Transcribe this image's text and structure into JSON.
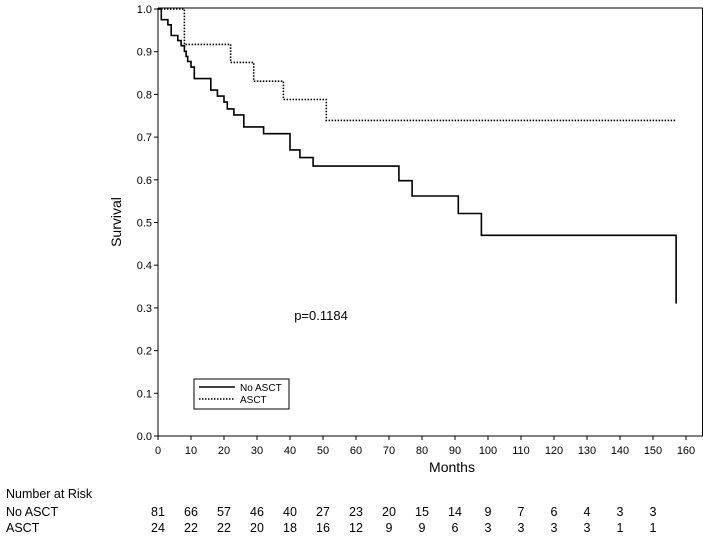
{
  "chart_data": {
    "type": "line",
    "subtype": "kaplan-meier-step",
    "xlabel": "Months",
    "ylabel": "Survival",
    "xlim": [
      0,
      160
    ],
    "ylim": [
      0.0,
      1.0
    ],
    "xticks": [
      "0",
      "10",
      "20",
      "30",
      "40",
      "50",
      "60",
      "70",
      "80",
      "90",
      "100",
      "110",
      "120",
      "130",
      "140",
      "150",
      "160"
    ],
    "yticks": [
      "0.0",
      "0.1",
      "0.2",
      "0.3",
      "0.4",
      "0.5",
      "0.6",
      "0.7",
      "0.8",
      "0.9",
      "1.0"
    ],
    "grid": false,
    "legend_position": "bottom-left",
    "annotation": "p=0.1184",
    "series": [
      {
        "name": "No ASCT",
        "style": "solid",
        "color": "#000000",
        "x": [
          0,
          1,
          3,
          4,
          6,
          7,
          8,
          8.5,
          9,
          10,
          11,
          16,
          18,
          20,
          21,
          23,
          26,
          32,
          39,
          40,
          43,
          47,
          73,
          77,
          91,
          98,
          157,
          157
        ],
        "y": [
          1.0,
          0.975,
          0.963,
          0.938,
          0.926,
          0.914,
          0.901,
          0.889,
          0.877,
          0.864,
          0.837,
          0.81,
          0.796,
          0.782,
          0.766,
          0.752,
          0.724,
          0.708,
          0.708,
          0.67,
          0.652,
          0.632,
          0.598,
          0.562,
          0.521,
          0.47,
          0.47,
          0.31
        ]
      },
      {
        "name": "ASCT",
        "style": "dotted",
        "color": "#000000",
        "x": [
          0,
          8,
          22,
          29,
          38,
          51,
          157
        ],
        "y": [
          1.0,
          0.917,
          0.875,
          0.831,
          0.788,
          0.739,
          0.739
        ]
      }
    ],
    "risk_table": {
      "title": "Number at Risk",
      "rows": [
        {
          "label": "No ASCT",
          "values": [
            "81",
            "66",
            "57",
            "46",
            "40",
            "27",
            "23",
            "20",
            "15",
            "14",
            "9",
            "7",
            "6",
            "4",
            "3",
            "3"
          ]
        },
        {
          "label": "ASCT",
          "values": [
            "24",
            "22",
            "22",
            "20",
            "18",
            "16",
            "12",
            "9",
            "9",
            "6",
            "3",
            "3",
            "3",
            "3",
            "1",
            "1"
          ]
        }
      ]
    }
  }
}
